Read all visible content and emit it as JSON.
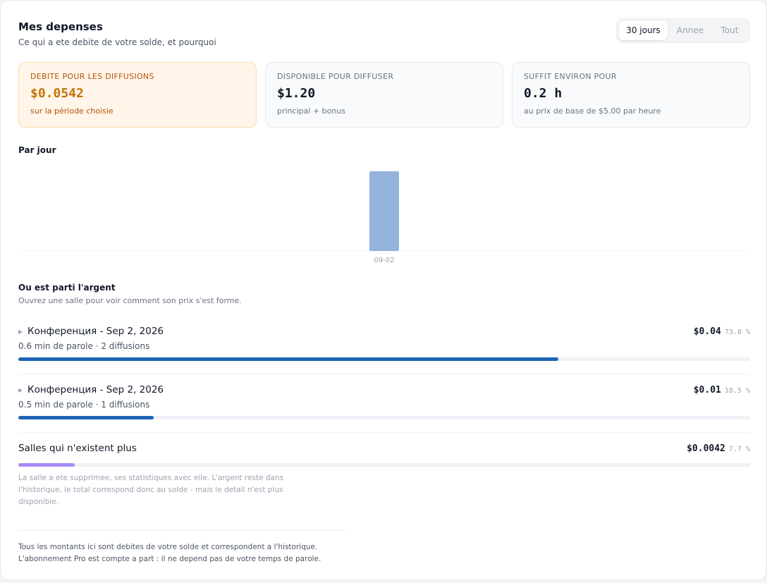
{
  "header": {
    "title": "Mes depenses",
    "subtitle": "Ce qui a ete debite de votre solde, et pourquoi"
  },
  "period_selector": {
    "options": [
      "30 jours",
      "Annee",
      "Tout"
    ],
    "selected": "30 jours"
  },
  "stats": [
    {
      "label": "DEBITE POUR LES DIFFUSIONS",
      "value": "$0.0542",
      "sub": "sur la période choisie"
    },
    {
      "label": "DISPONIBLE POUR DIFFUSER",
      "value": "$1.20",
      "sub": "principal + bonus"
    },
    {
      "label": "SUFFIT ENVIRON POUR",
      "value": "0.2 h",
      "sub": "au prix de base de $5.00 par heure"
    }
  ],
  "daily": {
    "title": "Par jour"
  },
  "chart_data": {
    "type": "bar",
    "categories": [
      "09-02"
    ],
    "values": [
      0.0542
    ],
    "ylim": [
      0,
      0.0542
    ],
    "grid": false,
    "bar_color": "#94b4dc"
  },
  "breakdown": {
    "title": "Ou est parti l'argent",
    "subtitle": "Ouvrez une salle pour voir comment son prix s'est forme.",
    "rooms": [
      {
        "name": "Конференция - Sep 2, 2026",
        "amount": "$0.04",
        "percent_label": "73.8 %",
        "percent": 73.8,
        "meta": "0.6 min de parole · 2 diffusions",
        "color": "#1d64b6"
      },
      {
        "name": "Конференция - Sep 2, 2026",
        "amount": "$0.01",
        "percent_label": "18.5 %",
        "percent": 18.5,
        "meta": "0.5 min de parole · 1 diffusions",
        "color": "#1d64b6"
      }
    ],
    "deleted": {
      "name": "Salles qui n'existent plus",
      "amount": "$0.0042",
      "percent_label": "7.7 %",
      "percent": 7.7,
      "color": "#a78bfa",
      "note": "La salle a ete supprimee, ses statistiques avec elle. L'argent reste dans l'historique, le total correspond donc au solde - mais le detail n'est plus disponible."
    }
  },
  "footer": {
    "line1": "Tous les montants ici sont debites de votre solde et correspondent a l'historique.",
    "line2": "L'abonnement Pro est compte a part : il ne depend pas de votre temps de parole."
  }
}
